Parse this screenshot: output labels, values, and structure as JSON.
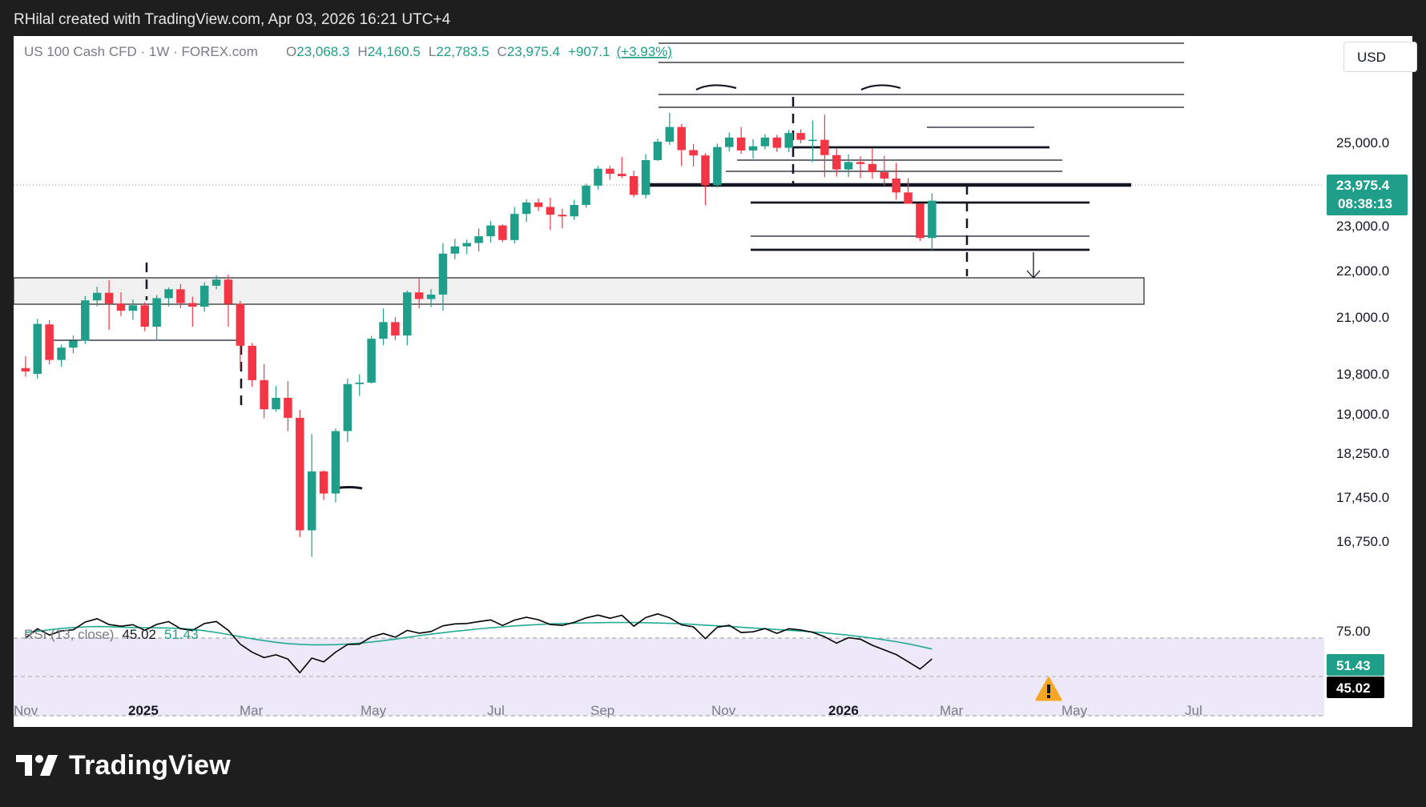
{
  "credit": "RHilal created with TradingView.com, Apr 03, 2026 16:21 UTC+4",
  "currency_button": "USD",
  "brand": "TradingView",
  "colors": {
    "up": "#1f9e89",
    "down": "#f23645",
    "rsi_line": "#000000",
    "rsi_ma": "#22ab94",
    "rsi_band": "#ede9f9",
    "support_zone": "#f0f0f0",
    "text_muted": "#787b86",
    "warning": "#f5a623"
  },
  "legend": {
    "symbol": "US 100 Cash CFD · 1W · FOREX.com",
    "o_label": "O",
    "o_value": "23,068.3",
    "h_label": "H",
    "h_value": "24,160.5",
    "l_label": "L",
    "l_value": "22,783.5",
    "c_label": "C",
    "c_value": "23,975.4",
    "change": "+907.1",
    "change_pct": "(+3.93%)"
  },
  "price_badge": {
    "price": "23,975.4",
    "countdown": "08:38:13"
  },
  "rsi_legend": {
    "title": "RSI (13, close)",
    "rsi": "45.02",
    "ma": "51.43"
  },
  "rsi_badges": {
    "ma": "51.43",
    "rsi": "45.02"
  },
  "y_axis_labels": [
    "25,000.0",
    "23,000.0",
    "22,000.0",
    "21,000.0",
    "19,800.0",
    "19,000.0",
    "18,250.0",
    "17,450.0",
    "16,750.0"
  ],
  "rsi_axis_label": "75.00",
  "x_axis_labels": [
    "Nov",
    "2025",
    "Mar",
    "May",
    "Jul",
    "Sep",
    "Nov",
    "2026",
    "Mar",
    "May",
    "Jul"
  ],
  "chart_data": {
    "type": "candlestick",
    "title": "US 100 Cash CFD · 1W · FOREX.com",
    "timeframe": "1W",
    "x_range": [
      "2024-10-28",
      "2026-07-13"
    ],
    "start_week": "2024-11-04",
    "y_axis": {
      "scale": "log",
      "labels": [
        25000,
        23000,
        22000,
        21000,
        19800,
        19000,
        18250,
        17450,
        16750
      ],
      "range": [
        16000,
        27200
      ]
    },
    "current_price": 23975.4,
    "candles": [
      [
        20170,
        20420,
        19990,
        20100
      ],
      [
        20050,
        21220,
        19950,
        21110
      ],
      [
        21100,
        21190,
        20250,
        20340
      ],
      [
        20340,
        20660,
        20200,
        20600
      ],
      [
        20600,
        20860,
        20480,
        20750
      ],
      [
        20750,
        21730,
        20680,
        21630
      ],
      [
        21630,
        21940,
        21500,
        21800
      ],
      [
        21800,
        22090,
        20980,
        21560
      ],
      [
        21560,
        21810,
        21280,
        21400
      ],
      [
        21400,
        21650,
        21200,
        21520
      ],
      [
        21520,
        21590,
        20950,
        21050
      ],
      [
        21050,
        21750,
        20750,
        21680
      ],
      [
        21680,
        21920,
        21500,
        21880
      ],
      [
        21880,
        22000,
        21460,
        21570
      ],
      [
        21570,
        21710,
        21050,
        21490
      ],
      [
        21490,
        22040,
        21380,
        21960
      ],
      [
        21960,
        22200,
        21880,
        22100
      ],
      [
        22100,
        22210,
        21050,
        21550
      ],
      [
        21550,
        21620,
        20150,
        20640
      ],
      [
        20640,
        20700,
        19780,
        19920
      ],
      [
        19920,
        20250,
        19150,
        19330
      ],
      [
        19330,
        19800,
        19280,
        19560
      ],
      [
        19560,
        19900,
        18900,
        19160
      ],
      [
        19160,
        19320,
        16940,
        17060
      ],
      [
        17060,
        18840,
        16600,
        18130
      ],
      [
        18130,
        18150,
        17600,
        17720
      ],
      [
        17720,
        18950,
        17560,
        18900
      ],
      [
        18900,
        19950,
        18690,
        19840
      ],
      [
        19840,
        20040,
        19600,
        19870
      ],
      [
        19870,
        20850,
        19850,
        20790
      ],
      [
        20790,
        21450,
        20650,
        21150
      ],
      [
        21150,
        21260,
        20760,
        20860
      ],
      [
        20860,
        21850,
        20650,
        21810
      ],
      [
        21810,
        22120,
        21450,
        21660
      ],
      [
        21660,
        21880,
        21480,
        21760
      ],
      [
        21760,
        22950,
        21400,
        22700
      ],
      [
        22700,
        23050,
        22570,
        22870
      ],
      [
        22870,
        23030,
        22690,
        22950
      ],
      [
        22950,
        23300,
        22750,
        23110
      ],
      [
        23110,
        23480,
        22960,
        23370
      ],
      [
        23370,
        23400,
        22970,
        23020
      ],
      [
        23020,
        23820,
        22940,
        23650
      ],
      [
        23650,
        24010,
        23450,
        23930
      ],
      [
        23930,
        24030,
        23720,
        23820
      ],
      [
        23820,
        24050,
        23260,
        23630
      ],
      [
        23630,
        23780,
        23300,
        23590
      ],
      [
        23590,
        24000,
        23500,
        23870
      ],
      [
        23870,
        24400,
        23800,
        24350
      ],
      [
        24350,
        24850,
        24250,
        24780
      ],
      [
        24780,
        24850,
        24500,
        24650
      ],
      [
        24650,
        25080,
        24540,
        24590
      ],
      [
        24590,
        24730,
        24060,
        24120
      ],
      [
        24120,
        25150,
        24030,
        25000
      ],
      [
        25000,
        25560,
        24980,
        25480
      ],
      [
        25480,
        26250,
        25400,
        25870
      ],
      [
        25870,
        25950,
        24850,
        25260
      ],
      [
        25260,
        25420,
        24830,
        25120
      ],
      [
        25120,
        25180,
        23860,
        24360
      ],
      [
        24360,
        25430,
        24300,
        25340
      ],
      [
        25340,
        25720,
        25230,
        25590
      ],
      [
        25590,
        25870,
        25160,
        25250
      ],
      [
        25250,
        25550,
        25040,
        25360
      ],
      [
        25360,
        25680,
        25280,
        25590
      ],
      [
        25590,
        25660,
        25210,
        25320
      ],
      [
        25320,
        25800,
        25210,
        25710
      ],
      [
        25710,
        25810,
        25440,
        25530
      ],
      [
        25530,
        26050,
        24950,
        25530
      ],
      [
        25530,
        26200,
        24560,
        25130
      ],
      [
        25130,
        25300,
        24580,
        24760
      ],
      [
        24760,
        25150,
        24570,
        24950
      ],
      [
        24950,
        25100,
        24540,
        24900
      ],
      [
        24900,
        25310,
        24520,
        24690
      ],
      [
        24690,
        25110,
        24350,
        24530
      ],
      [
        24530,
        24930,
        24000,
        24180
      ],
      [
        24180,
        24540,
        23950,
        23900
      ],
      [
        23900,
        23880,
        23000,
        23070
      ],
      [
        23068.3,
        24160.5,
        22783.5,
        23975.4
      ]
    ],
    "rsi": {
      "period": 13,
      "range": [
        0,
        100
      ],
      "last": 45.02,
      "ma_last": 51.43,
      "values": [
        58.5,
        64.6,
        60.5,
        63.2,
        63.9,
        68.9,
        71.1,
        67.3,
        66.2,
        67.2,
        63.6,
        67.4,
        69.2,
        64.6,
        63.5,
        68.0,
        69.3,
        63.5,
        54.6,
        49.4,
        45.9,
        47.7,
        44.9,
        36.1,
        45.6,
        43.1,
        49.5,
        54.4,
        54.6,
        59.3,
        61.5,
        59.1,
        63.5,
        61.7,
        62.8,
        66.5,
        67.7,
        68.0,
        69.2,
        70.3,
        66.7,
        70.2,
        72.0,
        70.4,
        67.3,
        66.8,
        68.7,
        71.6,
        73.4,
        71.4,
        73.3,
        66.2,
        71.8,
        74.2,
        71.7,
        67.1,
        65.8,
        58.2,
        65.6,
        66.8,
        62.1,
        62.6,
        64.7,
        61.6,
        64.6,
        63.8,
        62.3,
        59.4,
        55.3,
        58.8,
        57.8,
        53.9,
        50.9,
        47.9,
        43.2,
        38.5,
        45.02
      ],
      "ma": [
        62.2,
        63.0,
        63.9,
        64.8,
        65.4,
        65.8,
        66.0,
        65.9,
        65.6,
        65.4,
        65.3,
        65.2,
        65.1,
        64.8,
        64.2,
        63.3,
        62.2,
        60.9,
        59.5,
        58.1,
        56.9,
        55.8,
        55.0,
        54.5,
        54.2,
        54.2,
        54.3,
        54.7,
        55.3,
        56.0,
        56.9,
        57.9,
        59.0,
        60.1,
        61.1,
        62.0,
        62.9,
        63.7,
        64.5,
        65.2,
        65.8,
        66.4,
        66.9,
        67.3,
        67.7,
        68.0,
        68.2,
        68.4,
        68.5,
        68.6,
        68.6,
        68.6,
        68.5,
        68.3,
        68.1,
        67.8,
        67.4,
        66.9,
        66.5,
        66.1,
        65.6,
        65.1,
        64.6,
        64.1,
        63.6,
        63.1,
        62.5,
        61.9,
        61.2,
        60.4,
        59.5,
        58.5,
        57.4,
        56.2,
        54.8,
        53.2,
        51.43
      ]
    }
  }
}
